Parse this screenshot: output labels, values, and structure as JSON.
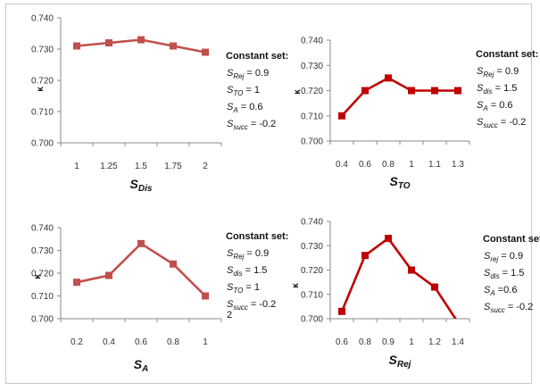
{
  "chart_data": [
    {
      "type": "line",
      "categories": [
        "1",
        "1.25",
        "1.5",
        "1.75",
        "2"
      ],
      "series": [
        {
          "values": [
            0.731,
            0.732,
            0.733,
            0.731,
            0.729
          ],
          "color": "#c0504d"
        }
      ],
      "xlabel": {
        "main": "S",
        "sub": "Dis"
      },
      "ylabel": "κ",
      "ylim": [
        0.7,
        0.74
      ],
      "yticks": [
        "0.700",
        "0.710",
        "0.720",
        "0.730",
        "0.740"
      ],
      "grid": false,
      "legend_title": "Constant set:",
      "constants": [
        {
          "main": "S",
          "sub": "Rej",
          "text": " = 0.9"
        },
        {
          "main": "S",
          "sub": "TO",
          "text": "   = 1"
        },
        {
          "main": "S",
          "sub": "A",
          "text": "    = 0.6"
        },
        {
          "main": "S",
          "sub": "succ",
          "text": " = -0.2"
        }
      ]
    },
    {
      "type": "line",
      "categories": [
        "0.4",
        "0.6",
        "0.8",
        "1",
        "1.1",
        "1.3"
      ],
      "series": [
        {
          "values": [
            0.71,
            0.72,
            0.725,
            0.72,
            0.72,
            0.72
          ],
          "color": "#c00000"
        }
      ],
      "xlabel": {
        "main": "S",
        "sub": "TO"
      },
      "ylabel": "κ",
      "ylim": [
        0.7,
        0.74
      ],
      "yticks": [
        "0.700",
        "0.710",
        "0.720",
        "0.730",
        "0.740"
      ],
      "grid": false,
      "legend_title": "Constant set:",
      "constants": [
        {
          "main": "S",
          "sub": "Rej",
          "text": " = 0.9"
        },
        {
          "main": "S",
          "sub": "dis",
          "text": "  = 1.5"
        },
        {
          "main": "S",
          "sub": "A",
          "text": "    = 0.6"
        },
        {
          "main": "S",
          "sub": "succ",
          "text": " = -0.2"
        }
      ]
    },
    {
      "type": "line",
      "categories": [
        "0.2",
        "0.4",
        "0.6",
        "0.8",
        "1"
      ],
      "series": [
        {
          "values": [
            0.716,
            0.719,
            0.733,
            0.724,
            0.71
          ],
          "color": "#c0504d"
        }
      ],
      "xlabel": {
        "main": "S",
        "sub": "A"
      },
      "ylabel": "κ",
      "ylim": [
        0.7,
        0.74
      ],
      "yticks": [
        "0.700",
        "0.710",
        "0.720",
        "0.730",
        "0.740"
      ],
      "grid": false,
      "legend_title": "Constant set:",
      "constants": [
        {
          "main": "S",
          "sub": "Rej",
          "text": " = 0.9"
        },
        {
          "main": "S",
          "sub": "dis",
          "text": "  = 1.5"
        },
        {
          "main": "S",
          "sub": "TO",
          "text": "   = 1"
        },
        {
          "main": "S",
          "sub": "succ",
          "text": " = -0.2"
        }
      ],
      "extra_note": "2"
    },
    {
      "type": "line",
      "categories": [
        "0.6",
        "0.8",
        "0.9",
        "1",
        "1.2",
        "1.4"
      ],
      "series": [
        {
          "values": [
            0.703,
            0.726,
            0.733,
            0.72,
            0.713,
            0.6985
          ],
          "color": "#c00000"
        }
      ],
      "xlabel": {
        "main": "S",
        "sub": "Rej"
      },
      "ylabel": "κ",
      "ylim": [
        0.7,
        0.74
      ],
      "yticks": [
        "0.700",
        "0.710",
        "0.720",
        "0.730",
        "0.740"
      ],
      "grid": false,
      "legend_title": "Constant set:",
      "constants": [
        {
          "main": "S",
          "sub": "rej",
          "text": " = 0.9"
        },
        {
          "main": "S",
          "sub": "dis",
          "text": " = 1.5"
        },
        {
          "main": "S",
          "sub": "A",
          "text": "  =0.6"
        },
        {
          "main": "S",
          "sub": "succ",
          "text": " = -0.2"
        }
      ]
    }
  ]
}
